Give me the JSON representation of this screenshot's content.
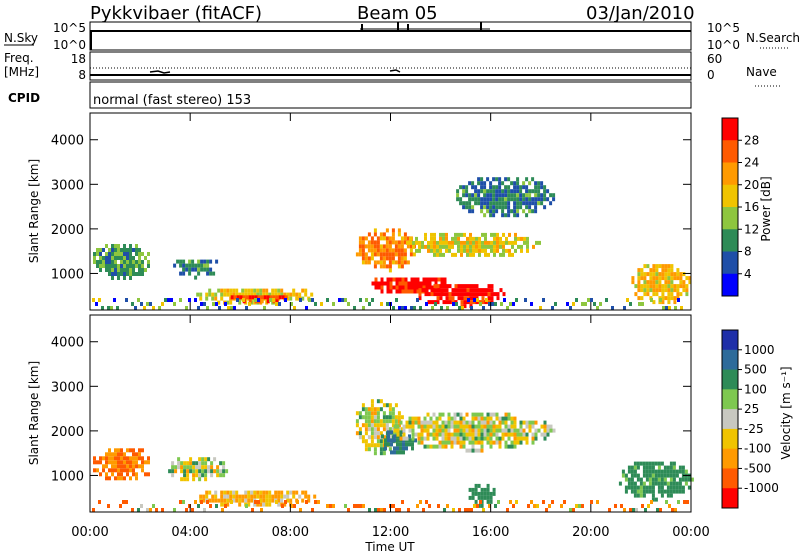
{
  "header": {
    "station": "Pykkvibaer (fitACF)",
    "beam": "Beam 05",
    "date": "03/Jan/2010"
  },
  "nsky_panel": {
    "left_label": "N.Sky",
    "left_ticks": [
      "10^5",
      "10^0"
    ],
    "right_label": "N.Search",
    "right_ticks": [
      "10^5",
      "10^0"
    ]
  },
  "freq_panel": {
    "left_label_line1": "Freq.",
    "left_label_line2": "[MHz]",
    "left_ticks": [
      "18",
      "8"
    ],
    "right_label": "Nave",
    "right_ticks": [
      "60",
      "0"
    ]
  },
  "cpid": {
    "label": "CPID",
    "value": "normal (fast stereo) 153"
  },
  "power_panel": {
    "ylabel": "Slant Range [km]",
    "yticks": [
      "4000",
      "3000",
      "2000",
      "1000"
    ],
    "colorbar_label": "Power [dB]",
    "colorbar_ticks": [
      "28",
      "24",
      "20",
      "16",
      "12",
      "8",
      "4"
    ],
    "colorbar_colors": [
      "#ff0000",
      "#ff5a00",
      "#ff9a00",
      "#f0c400",
      "#8ec63f",
      "#2e8b57",
      "#1f4fa8",
      "#0000ff"
    ]
  },
  "velocity_panel": {
    "ylabel": "Slant Range [km]",
    "yticks": [
      "4000",
      "3000",
      "2000",
      "1000"
    ],
    "colorbar_label": "Velocity [m s⁻¹]",
    "colorbar_ticks": [
      "1000",
      "500",
      "100",
      "25",
      "-25",
      "-100",
      "-500",
      "-1000"
    ],
    "colorbar_colors": [
      "#1f2fa8",
      "#2e6b9a",
      "#2e8b57",
      "#7ec850",
      "#c8c8c0",
      "#f0c400",
      "#ff9a00",
      "#ff5a00",
      "#ff0000"
    ]
  },
  "xaxis": {
    "label": "Time UT",
    "ticks": [
      "00:00",
      "04:00",
      "08:00",
      "12:00",
      "16:00",
      "20:00",
      "00:00"
    ]
  },
  "chart_data": [
    {
      "type": "heatmap",
      "title": "Power [dB]",
      "xlabel": "Time UT",
      "ylabel": "Slant Range [km]",
      "xlim": [
        0,
        24
      ],
      "ylim": [
        180,
        4600
      ],
      "zlim": [
        0,
        30
      ],
      "regions": [
        {
          "t": [
            0.0,
            2.5
          ],
          "range": [
            900,
            1750
          ],
          "value": 10
        },
        {
          "t": [
            3.2,
            5.2
          ],
          "range": [
            950,
            1400
          ],
          "value": 8
        },
        {
          "t": [
            4.0,
            9.0
          ],
          "range": [
            350,
            750
          ],
          "value": 16
        },
        {
          "t": [
            5.5,
            8.0
          ],
          "range": [
            400,
            600
          ],
          "value": 26
        },
        {
          "t": [
            10.5,
            13.0
          ],
          "range": [
            1100,
            2100
          ],
          "value": 22
        },
        {
          "t": [
            11.0,
            14.5
          ],
          "range": [
            550,
            1000
          ],
          "value": 28
        },
        {
          "t": [
            13.0,
            16.5
          ],
          "range": [
            300,
            850
          ],
          "value": 29
        },
        {
          "t": [
            12.5,
            18.0
          ],
          "range": [
            1400,
            2000
          ],
          "value": 16
        },
        {
          "t": [
            14.5,
            18.5
          ],
          "range": [
            2300,
            3250
          ],
          "value": 8
        },
        {
          "t": [
            21.5,
            24.0
          ],
          "range": [
            350,
            1300
          ],
          "value": 18
        }
      ]
    },
    {
      "type": "heatmap",
      "title": "Velocity [m s⁻¹]",
      "xlabel": "Time UT",
      "ylabel": "Slant Range [km]",
      "xlim": [
        0,
        24
      ],
      "ylim": [
        180,
        4600
      ],
      "zlim": [
        -1000,
        1000
      ],
      "regions": [
        {
          "t": [
            0.0,
            2.5
          ],
          "range": [
            900,
            1700
          ],
          "value": -500
        },
        {
          "t": [
            3.0,
            5.5
          ],
          "range": [
            900,
            1500
          ],
          "value": 0
        },
        {
          "t": [
            4.0,
            9.0
          ],
          "range": [
            350,
            750
          ],
          "value": -100
        },
        {
          "t": [
            10.5,
            12.5
          ],
          "range": [
            1500,
            2800
          ],
          "value": 0
        },
        {
          "t": [
            11.5,
            13.0
          ],
          "range": [
            1500,
            2100
          ],
          "value": 500
        },
        {
          "t": [
            12.0,
            18.5
          ],
          "range": [
            1600,
            2500
          ],
          "value": 0
        },
        {
          "t": [
            15.0,
            16.2
          ],
          "range": [
            350,
            900
          ],
          "value": 300
        },
        {
          "t": [
            21.0,
            24.0
          ],
          "range": [
            500,
            1400
          ],
          "value": 200
        }
      ]
    }
  ]
}
